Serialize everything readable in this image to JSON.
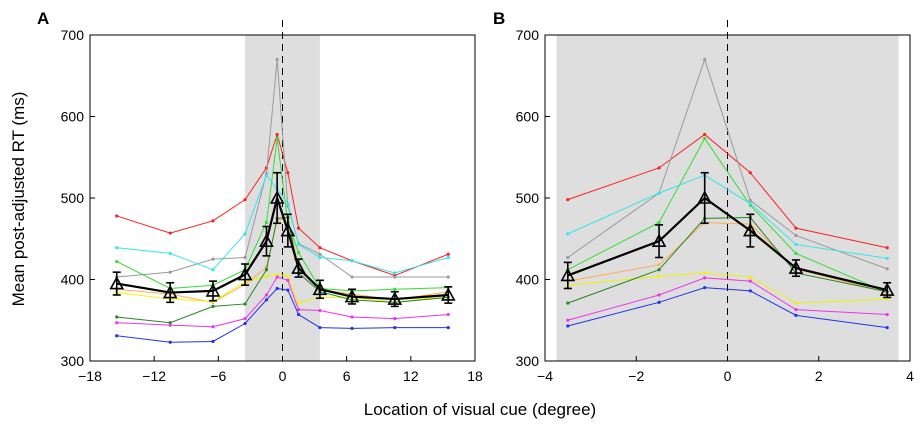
{
  "figure": {
    "ylabel": "Mean post-adjusted RT (ms)",
    "xlabel": "Location of visual cue (degree)",
    "shade_color": "#dedede",
    "colors": {
      "red": "#ff2020",
      "gray": "#9a9a9a",
      "green": "#33dd33",
      "cyan": "#33e5ee",
      "orange": "#ffaa55",
      "yellow": "#f2f200",
      "darkgreen": "#228822",
      "magenta": "#ee33ee",
      "blue": "#2233ee",
      "mean": "#000000"
    }
  },
  "chart_data": [
    {
      "panel_label": "A",
      "type": "line",
      "xlim": [
        -18,
        18
      ],
      "ylim": [
        300,
        700
      ],
      "xticks": [
        "−18",
        "−12",
        "−6",
        "0",
        "6",
        "12",
        "18"
      ],
      "yticks": [
        "300",
        "400",
        "500",
        "600",
        "700"
      ],
      "shaded_region": [
        -3.5,
        3.5
      ],
      "vline_dashed_at": 0,
      "x": [
        -15.5,
        -10.5,
        -6.5,
        -3.5,
        -1.5,
        -0.5,
        0.5,
        1.5,
        3.5,
        6.5,
        10.5,
        15.5
      ],
      "series": [
        {
          "color": "red",
          "values": [
            478,
            457,
            472,
            498,
            537,
            578,
            531,
            463,
            439,
            423,
            405,
            431
          ]
        },
        {
          "color": "gray",
          "values": [
            403,
            409,
            425,
            427,
            530,
            670,
            490,
            444,
            431,
            403,
            403,
            403
          ]
        },
        {
          "color": "green",
          "values": [
            422,
            389,
            393,
            412,
            470,
            573,
            470,
            433,
            389,
            386,
            388,
            390
          ]
        },
        {
          "color": "cyan",
          "values": [
            439,
            432,
            412,
            456,
            528,
            511,
            493,
            443,
            427,
            423,
            408,
            427
          ]
        },
        {
          "color": "orange",
          "values": [
            388,
            382,
            372,
            394,
            415,
            472,
            476,
            415,
            388,
            382,
            375,
            385
          ]
        },
        {
          "color": "yellow",
          "values": [
            384,
            376,
            373,
            397,
            404,
            406,
            404,
            371,
            378,
            378,
            372,
            380
          ]
        },
        {
          "color": "darkgreen",
          "values": [
            354,
            347,
            367,
            370,
            412,
            475,
            476,
            408,
            385,
            375,
            372,
            378
          ]
        },
        {
          "color": "magenta",
          "values": [
            347,
            344,
            342,
            352,
            381,
            403,
            399,
            363,
            362,
            354,
            352,
            357
          ]
        },
        {
          "color": "blue",
          "values": [
            331,
            323,
            324,
            346,
            375,
            389,
            387,
            357,
            341,
            340,
            341,
            341
          ]
        },
        {
          "color": "mean",
          "mean": true,
          "values": [
            395,
            384,
            386,
            406,
            447,
            500,
            460,
            414,
            388,
            379,
            376,
            381
          ],
          "errors": [
            14,
            12,
            12,
            13,
            18,
            31,
            20,
            11,
            11,
            9,
            9,
            10
          ]
        }
      ]
    },
    {
      "panel_label": "B",
      "type": "line",
      "xlim": [
        -4,
        4
      ],
      "ylim": [
        300,
        700
      ],
      "xticks": [
        "−4",
        "−2",
        "0",
        "2",
        "4"
      ],
      "yticks": [
        "300",
        "400",
        "500",
        "600",
        "700"
      ],
      "shaded_region": [
        -3.75,
        3.75
      ],
      "vline_dashed_at": 0,
      "x": [
        -3.5,
        -1.5,
        -0.5,
        0.5,
        1.5,
        3.5
      ],
      "series": [
        {
          "color": "red",
          "values": [
            498,
            537,
            578,
            531,
            463,
            439
          ]
        },
        {
          "color": "gray",
          "values": [
            427,
            506,
            670,
            497,
            454,
            413
          ]
        },
        {
          "color": "green",
          "values": [
            412,
            470,
            573,
            491,
            432,
            384
          ]
        },
        {
          "color": "cyan",
          "values": [
            456,
            506,
            528,
            493,
            443,
            426
          ]
        },
        {
          "color": "orange",
          "values": [
            398,
            418,
            470,
            468,
            413,
            384
          ]
        },
        {
          "color": "yellow",
          "values": [
            393,
            404,
            408,
            403,
            371,
            376
          ]
        },
        {
          "color": "darkgreen",
          "values": [
            371,
            412,
            475,
            476,
            408,
            385
          ]
        },
        {
          "color": "magenta",
          "values": [
            350,
            381,
            402,
            398,
            363,
            357
          ]
        },
        {
          "color": "blue",
          "values": [
            343,
            372,
            390,
            386,
            356,
            341
          ]
        },
        {
          "color": "mean",
          "mean": true,
          "values": [
            405,
            447,
            500,
            460,
            414,
            387
          ],
          "errors": [
            16,
            20,
            31,
            20,
            10,
            9
          ]
        }
      ]
    }
  ]
}
